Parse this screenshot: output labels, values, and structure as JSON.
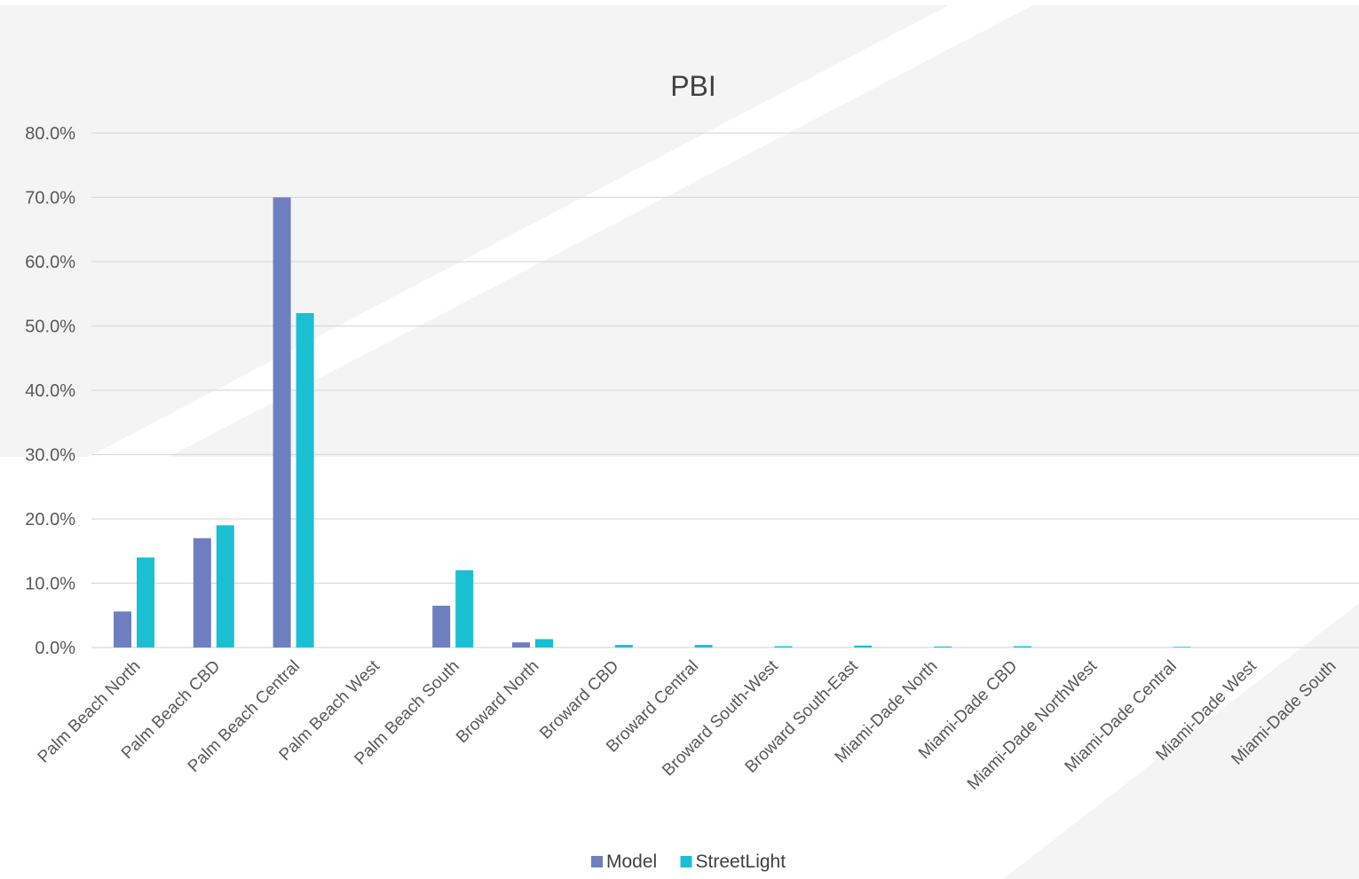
{
  "chart_data": {
    "type": "bar",
    "title": "PBI",
    "xlabel": "",
    "ylabel": "",
    "ylim": [
      0,
      80
    ],
    "yticks": [
      "0.0%",
      "10.0%",
      "20.0%",
      "30.0%",
      "40.0%",
      "50.0%",
      "60.0%",
      "70.0%",
      "80.0%"
    ],
    "ytick_values": [
      0,
      10,
      20,
      30,
      40,
      50,
      60,
      70,
      80
    ],
    "grid": true,
    "legend_position": "bottom",
    "categories": [
      "Palm Beach North",
      "Palm Beach CBD",
      "Palm Beach Central",
      "Palm Beach West",
      "Palm Beach South",
      "Broward North",
      "Broward CBD",
      "Broward Central",
      "Broward South-West",
      "Broward South-East",
      "Miami-Dade North",
      "Miami-Dade CBD",
      "Miami-Dade NorthWest",
      "Miami-Dade Central",
      "Miami-Dade West",
      "Miami-Dade South"
    ],
    "series": [
      {
        "name": "Model",
        "color": "#6e7fbf",
        "values": [
          5.6,
          17.0,
          70.0,
          0.0,
          6.5,
          0.8,
          0.0,
          0.0,
          0.0,
          0.0,
          0.0,
          0.0,
          0.0,
          0.0,
          0.0,
          0.0
        ]
      },
      {
        "name": "StreetLight",
        "color": "#1abfd2",
        "values": [
          14.0,
          19.0,
          52.0,
          0.0,
          12.0,
          1.3,
          0.4,
          0.4,
          0.2,
          0.3,
          0.15,
          0.2,
          0.0,
          0.1,
          0.0,
          0.0
        ]
      }
    ]
  }
}
